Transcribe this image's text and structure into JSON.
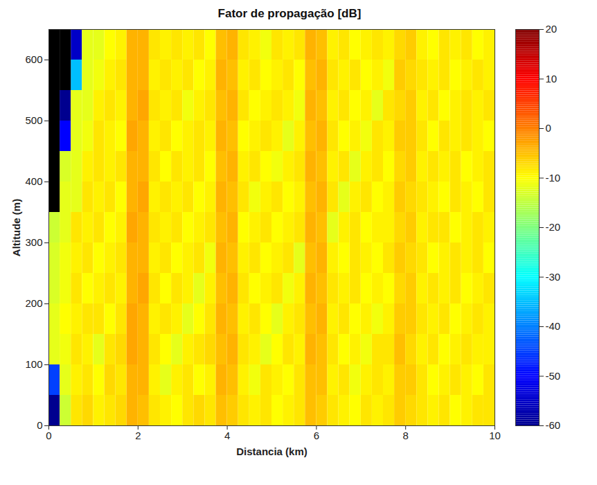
{
  "chart_data": {
    "type": "heatmap",
    "title": "Fator de propagação [dB]",
    "x_label": "Distancia (km)",
    "y_label": "Altitude (m)",
    "xlim": [
      0,
      10
    ],
    "xticks": [
      0,
      2,
      4,
      6,
      8,
      10
    ],
    "ylim": [
      0,
      650
    ],
    "yticks": [
      0,
      100,
      200,
      300,
      400,
      500,
      600
    ],
    "x_bins": [
      0,
      0.25,
      0.5,
      0.75,
      1,
      1.25,
      1.5,
      1.75,
      2,
      2.25,
      2.5,
      2.75,
      3,
      3.25,
      3.5,
      3.75,
      4,
      4.25,
      4.5,
      4.75,
      5,
      5.25,
      5.5,
      5.75,
      6,
      6.25,
      6.5,
      6.75,
      7,
      7.25,
      7.5,
      7.75,
      8,
      8.25,
      8.5,
      8.75,
      9,
      9.25,
      9.5,
      9.75,
      10
    ],
    "y_bins": [
      0,
      50,
      100,
      150,
      200,
      250,
      300,
      350,
      400,
      450,
      500,
      550,
      600,
      650
    ],
    "z": [
      [
        -60,
        -14,
        -8,
        -7,
        -9,
        -8,
        -7,
        -4,
        -5,
        -8,
        -9,
        -10,
        -8,
        -7,
        -8,
        -5,
        -6,
        -8,
        -9,
        -8,
        -10,
        -9,
        -8,
        -5,
        -6,
        -8,
        -9,
        -10,
        -8,
        -9,
        -8,
        -6,
        -7,
        -8,
        -9,
        -8,
        -10,
        -9,
        -8,
        -8
      ],
      [
        -45,
        -12,
        -9,
        -8,
        -10,
        -7,
        -8,
        -4,
        -4,
        -9,
        -12,
        -9,
        -8,
        -10,
        -9,
        -4,
        -5,
        -9,
        -11,
        -8,
        -9,
        -10,
        -8,
        -5,
        -5,
        -9,
        -8,
        -11,
        -9,
        -8,
        -9,
        -6,
        -6,
        -8,
        -10,
        -9,
        -8,
        -9,
        -10,
        -8
      ],
      [
        -12,
        -11,
        -8,
        -9,
        -12,
        -8,
        -7,
        -3,
        -4,
        -8,
        -10,
        -12,
        -9,
        -8,
        -7,
        -5,
        -4,
        -8,
        -9,
        -12,
        -10,
        -8,
        -9,
        -4,
        -5,
        -8,
        -10,
        -9,
        -11,
        -8,
        -8,
        -5,
        -7,
        -9,
        -8,
        -10,
        -9,
        -8,
        -9,
        -9
      ],
      [
        -12,
        -10,
        -9,
        -8,
        -8,
        -10,
        -8,
        -3,
        -4,
        -9,
        -8,
        -9,
        -12,
        -10,
        -8,
        -4,
        -5,
        -9,
        -8,
        -10,
        -12,
        -9,
        -8,
        -5,
        -4,
        -9,
        -8,
        -10,
        -9,
        -11,
        -9,
        -6,
        -6,
        -8,
        -9,
        -8,
        -10,
        -9,
        -8,
        -9
      ],
      [
        -13,
        -11,
        -8,
        -10,
        -9,
        -8,
        -9,
        -4,
        -3,
        -8,
        -10,
        -8,
        -9,
        -12,
        -9,
        -5,
        -4,
        -8,
        -10,
        -9,
        -8,
        -11,
        -9,
        -4,
        -5,
        -8,
        -9,
        -8,
        -10,
        -9,
        -10,
        -7,
        -6,
        -9,
        -8,
        -9,
        -8,
        -10,
        -9,
        -8
      ],
      [
        -13,
        -11,
        -9,
        -8,
        -10,
        -9,
        -8,
        -4,
        -4,
        -9,
        -8,
        -10,
        -9,
        -8,
        -11,
        -4,
        -5,
        -9,
        -8,
        -10,
        -9,
        -8,
        -12,
        -5,
        -4,
        -9,
        -10,
        -8,
        -9,
        -10,
        -8,
        -6,
        -7,
        -8,
        -10,
        -9,
        -8,
        -9,
        -8,
        -10
      ],
      [
        -14,
        -12,
        -8,
        -9,
        -8,
        -10,
        -9,
        -3,
        -4,
        -8,
        -9,
        -8,
        -10,
        -9,
        -8,
        -5,
        -4,
        -10,
        -9,
        -8,
        -10,
        -9,
        -8,
        -4,
        -5,
        -12,
        -9,
        -8,
        -10,
        -9,
        -9,
        -7,
        -6,
        -9,
        -8,
        -8,
        -10,
        -9,
        -8,
        -9
      ],
      [
        null,
        -12,
        -12,
        -8,
        -9,
        -8,
        -10,
        -4,
        -3,
        -9,
        -8,
        -9,
        -8,
        -10,
        -9,
        -4,
        -5,
        -8,
        -11,
        -9,
        -8,
        -10,
        -9,
        -5,
        -4,
        -8,
        -12,
        -9,
        -8,
        -10,
        -9,
        -6,
        -7,
        -8,
        -9,
        -10,
        -8,
        -9,
        -10,
        -8
      ],
      [
        null,
        -13,
        -12,
        -9,
        -8,
        -9,
        -8,
        -4,
        -4,
        -8,
        -10,
        -8,
        -9,
        -8,
        -10,
        -5,
        -4,
        -9,
        -8,
        -10,
        -11,
        -9,
        -8,
        -4,
        -5,
        -9,
        -8,
        -12,
        -9,
        -8,
        -10,
        -7,
        -6,
        -9,
        -8,
        -9,
        -8,
        -10,
        -9,
        -8
      ],
      [
        null,
        -50,
        -12,
        -11,
        -8,
        -9,
        -10,
        -3,
        -4,
        -9,
        -8,
        -10,
        -9,
        -8,
        -9,
        -4,
        -5,
        -10,
        -9,
        -8,
        -9,
        -12,
        -9,
        -5,
        -4,
        -8,
        -10,
        -9,
        -11,
        -8,
        -9,
        -6,
        -6,
        -8,
        -10,
        -8,
        -9,
        -8,
        -9,
        -10
      ],
      [
        null,
        -60,
        -12,
        -12,
        -9,
        -8,
        -9,
        -4,
        -3,
        -8,
        -9,
        -8,
        -11,
        -9,
        -8,
        -5,
        -4,
        -8,
        -10,
        -9,
        -8,
        -9,
        -11,
        -4,
        -5,
        -9,
        -8,
        -10,
        -9,
        -12,
        -8,
        -7,
        -6,
        -9,
        -8,
        -10,
        -9,
        -8,
        -9,
        -8
      ],
      [
        null,
        null,
        -35,
        -12,
        -11,
        -9,
        -8,
        -4,
        -4,
        -9,
        -8,
        -9,
        -8,
        -10,
        -9,
        -4,
        -5,
        -9,
        -8,
        -10,
        -9,
        -8,
        -10,
        -5,
        -4,
        -8,
        -9,
        -8,
        -10,
        -9,
        -11,
        -6,
        -7,
        -8,
        -9,
        -8,
        -10,
        -9,
        -8,
        -9
      ],
      [
        null,
        null,
        -55,
        -12,
        -12,
        -10,
        -9,
        -4,
        -4,
        -8,
        -9,
        -8,
        -9,
        -8,
        -10,
        -5,
        -4,
        -8,
        -9,
        -11,
        -8,
        -9,
        -8,
        -4,
        -5,
        -9,
        -8,
        -10,
        -9,
        -8,
        -9,
        -7,
        -6,
        -9,
        -10,
        -8,
        -9,
        -8,
        -10,
        -9
      ]
    ],
    "zlim": [
      -60,
      20
    ],
    "zticks": [
      -60,
      -50,
      -40,
      -30,
      -20,
      -10,
      0,
      10,
      20
    ]
  }
}
